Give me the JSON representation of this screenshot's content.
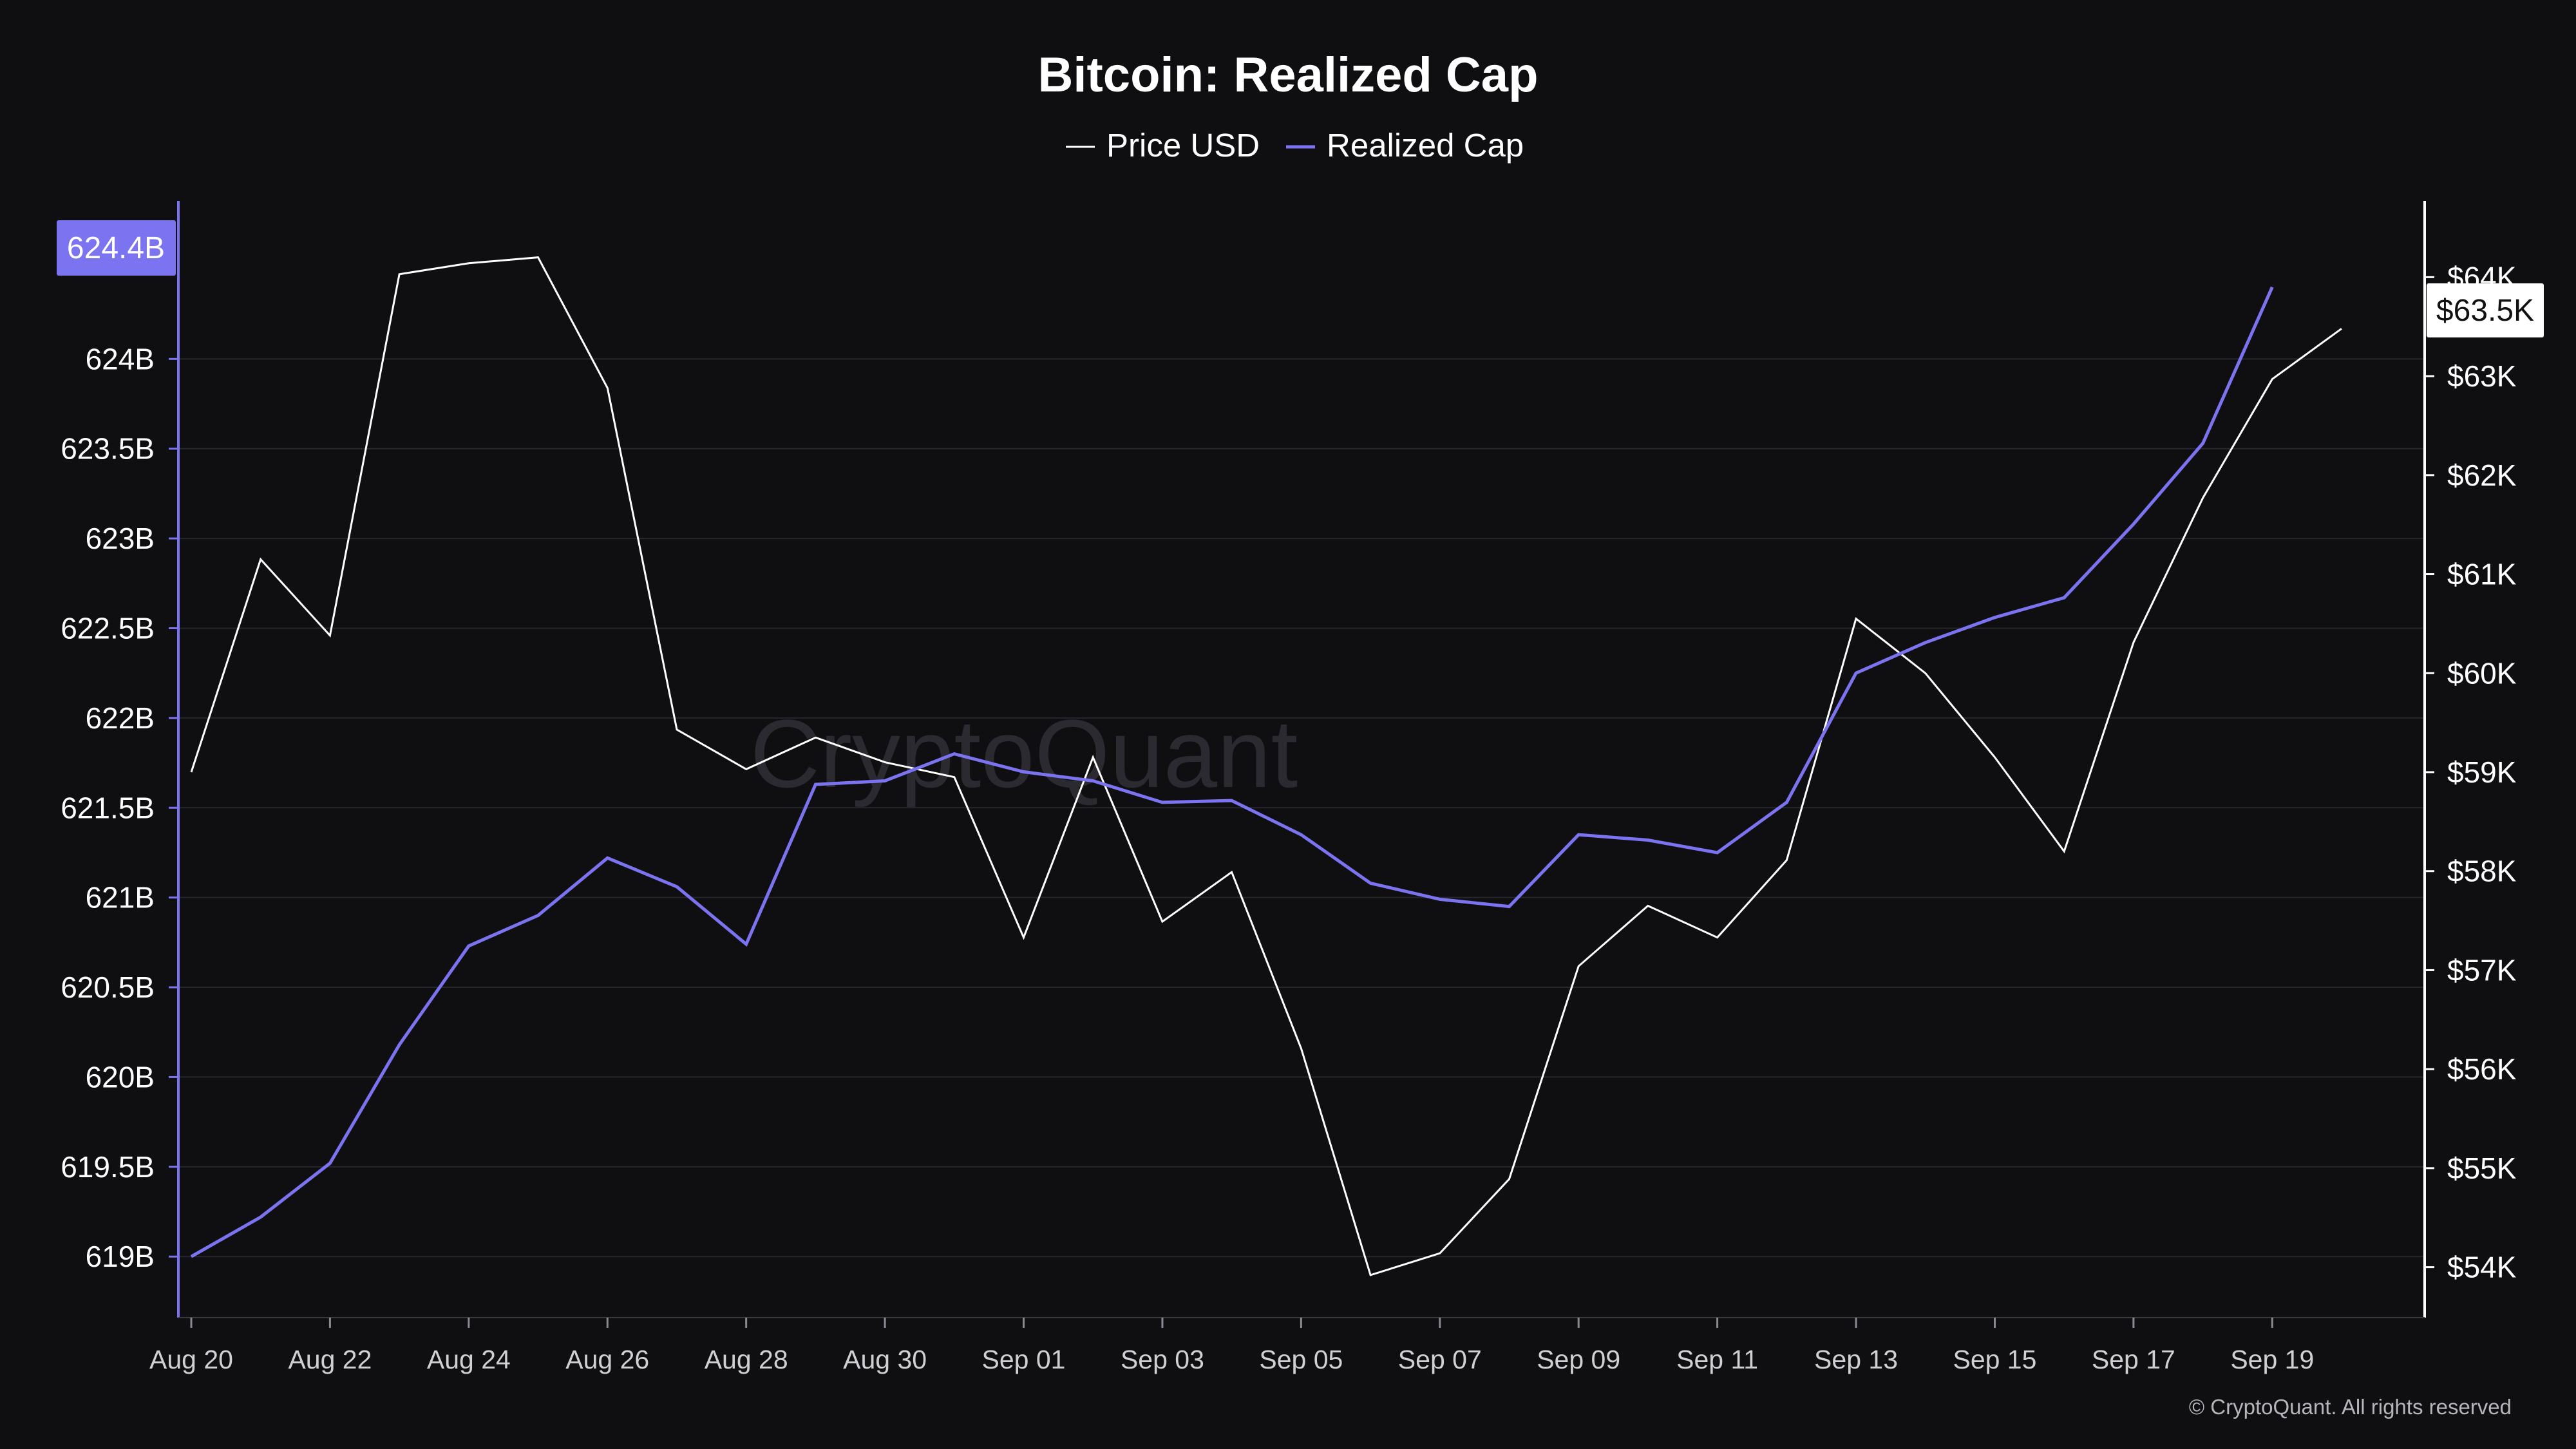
{
  "title": "Bitcoin: Realized Cap",
  "watermark": "CryptoQuant",
  "copyright": "© CryptoQuant. All rights reserved",
  "legend": [
    {
      "label": "Price USD",
      "color": "#ffffff"
    },
    {
      "label": "Realized Cap",
      "color": "#7b73f0"
    }
  ],
  "current_values": {
    "realized_cap": "624.4B",
    "price": "$63.5K"
  },
  "chart_data": {
    "type": "line",
    "title": "Bitcoin: Realized Cap",
    "x": [
      "Aug 20",
      "Aug 21",
      "Aug 22",
      "Aug 23",
      "Aug 24",
      "Aug 25",
      "Aug 26",
      "Aug 27",
      "Aug 28",
      "Aug 29",
      "Aug 30",
      "Aug 31",
      "Sep 01",
      "Sep 02",
      "Sep 03",
      "Sep 04",
      "Sep 05",
      "Sep 06",
      "Sep 07",
      "Sep 08",
      "Sep 09",
      "Sep 10",
      "Sep 11",
      "Sep 12",
      "Sep 13",
      "Sep 14",
      "Sep 15",
      "Sep 16",
      "Sep 17",
      "Sep 18",
      "Sep 19",
      "Sep 20"
    ],
    "x_tick_labels": [
      "Aug 20",
      "Aug 22",
      "Aug 24",
      "Aug 26",
      "Aug 28",
      "Aug 30",
      "Sep 01",
      "Sep 03",
      "Sep 05",
      "Sep 07",
      "Sep 09",
      "Sep 11",
      "Sep 13",
      "Sep 15",
      "Sep 17",
      "Sep 19"
    ],
    "series": [
      {
        "name": "Price USD",
        "axis": "right",
        "color": "#ffffff",
        "values": [
          59000,
          61150,
          60380,
          64030,
          64140,
          64200,
          62880,
          59430,
          59030,
          59350,
          59100,
          58950,
          57330,
          59150,
          57490,
          57990,
          56210,
          53920,
          54140,
          54890,
          57040,
          57650,
          57330,
          58110,
          60550,
          60000,
          59150,
          58200,
          60310,
          61770,
          62970,
          63480
        ]
      },
      {
        "name": "Realized Cap",
        "axis": "left",
        "color": "#7b73f0",
        "values": [
          619.0,
          619.22,
          619.52,
          620.18,
          620.73,
          620.9,
          621.22,
          621.06,
          620.74,
          621.63,
          621.65,
          621.8,
          621.7,
          621.65,
          621.53,
          621.54,
          621.35,
          621.08,
          620.99,
          620.95,
          621.35,
          621.32,
          621.25,
          621.53,
          622.25,
          622.42,
          622.56,
          622.67,
          623.08,
          623.53,
          624.4,
          null
        ]
      }
    ],
    "left_axis": {
      "ticks": [
        619,
        619.5,
        620,
        620.5,
        621,
        621.5,
        622,
        622.5,
        623,
        623.5,
        624
      ],
      "tick_labels": [
        "619B",
        "619.5B",
        "620B",
        "620.5B",
        "621B",
        "621.5B",
        "622B",
        "622.5B",
        "623B",
        "623.5B",
        "624B"
      ],
      "range": [
        618.66,
        624.88
      ]
    },
    "right_axis": {
      "ticks": [
        54000,
        55000,
        56000,
        57000,
        58000,
        59000,
        60000,
        61000,
        62000,
        63000,
        64000
      ],
      "tick_labels": [
        "$54K",
        "$55K",
        "$56K",
        "$57K",
        "$58K",
        "$59K",
        "$60K",
        "$61K",
        "$62K",
        "$63K",
        "$64K"
      ],
      "range": [
        53490,
        64770
      ]
    },
    "grid": true,
    "legend_position": "top-center"
  }
}
